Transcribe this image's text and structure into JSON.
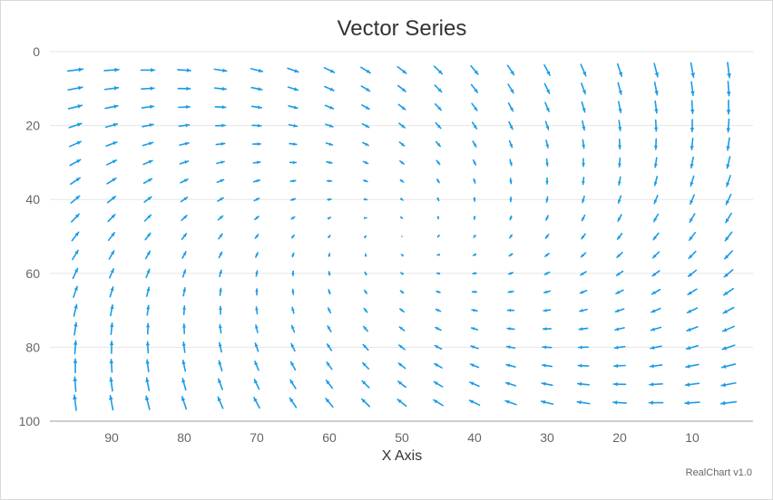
{
  "chart_data": {
    "type": "vector",
    "title": "Vector Series",
    "xlabel": "X Axis",
    "ylabel": "",
    "credit": "RealChart v1.0",
    "x_axis": {
      "reversed": true,
      "ticks": [
        90,
        80,
        70,
        60,
        50,
        40,
        30,
        20,
        10
      ]
    },
    "y_axis": {
      "reversed": true,
      "range": [
        0,
        100
      ],
      "ticks": [
        0,
        20,
        40,
        60,
        80,
        100
      ]
    },
    "grid": true,
    "grid_x": [
      95,
      90,
      85,
      80,
      75,
      70,
      65,
      60,
      55,
      50,
      45,
      40,
      35,
      30,
      25,
      20,
      15,
      10,
      5
    ],
    "grid_y": [
      5,
      10,
      15,
      20,
      25,
      30,
      35,
      40,
      45,
      50,
      55,
      60,
      65,
      70,
      75,
      80,
      85,
      90,
      95
    ],
    "vector_field": "length ≈ 0.1 × distance from (50, 50), direction toward the center rotated so the field circulates around it",
    "colors": {
      "arrow": "#1a9be6",
      "grid": "#e6e6e6",
      "axis": "#bdbdbd",
      "text": "#333333",
      "tick": "#666666"
    }
  }
}
